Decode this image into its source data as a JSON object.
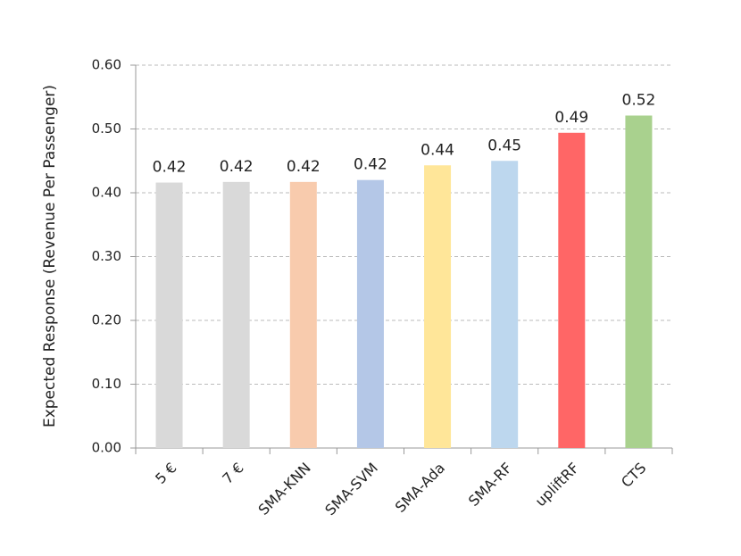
{
  "chart_data": {
    "type": "bar",
    "y_label": "Expected Response (Revenue Per Passenger)",
    "categories": [
      "5 €",
      "7 €",
      "SMA-KNN",
      "SMA-SVM",
      "SMA-Ada",
      "SMA-RF",
      "upliftRF",
      "CTS"
    ],
    "values": [
      0.416,
      0.417,
      0.417,
      0.42,
      0.443,
      0.45,
      0.494,
      0.521
    ],
    "value_labels": [
      "0.42",
      "0.42",
      "0.42",
      "0.42",
      "0.44",
      "0.45",
      "0.49",
      "0.52"
    ],
    "colors": [
      "#d9d9d9",
      "#d9d9d9",
      "#f8cbad",
      "#b4c7e7",
      "#ffe699",
      "#bdd7ee",
      "#ff6666",
      "#a9d18e"
    ],
    "ylim": [
      0,
      0.6
    ],
    "yticks": [
      {
        "value": 0,
        "label": "0.00"
      },
      {
        "value": 0.1,
        "label": "0.10"
      },
      {
        "value": 0.2,
        "label": "0.20"
      },
      {
        "value": 0.3,
        "label": "0.30"
      },
      {
        "value": 0.4,
        "label": "0.40"
      },
      {
        "value": 0.5,
        "label": "0.50"
      },
      {
        "value": 0.6,
        "label": "0.60"
      }
    ],
    "grid": true
  }
}
